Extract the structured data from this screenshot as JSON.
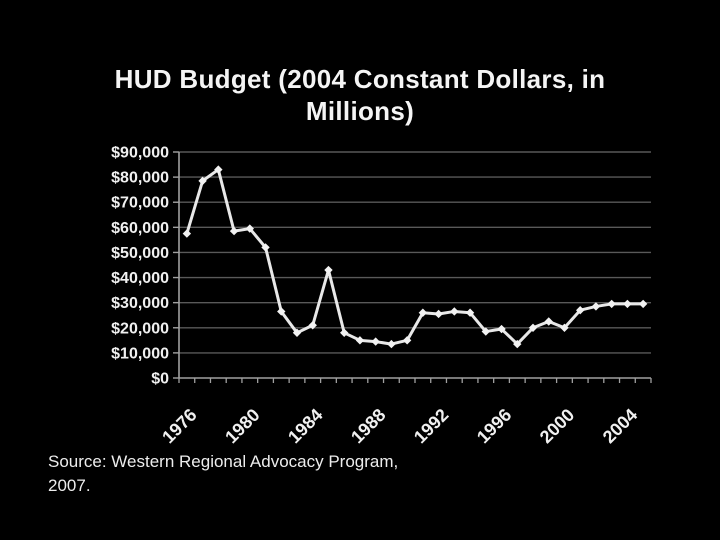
{
  "slide": {
    "title": {
      "line1": "HUD Budget (2004 Constant Dollars, in",
      "line2": "Millions)"
    },
    "source": {
      "line1": "Source: Western Regional Advocacy Program,",
      "line2": "2007."
    }
  },
  "colors": {
    "background": "#000000",
    "title_text": "#f5f5f5",
    "gridline": "#595959",
    "axis": "#a0a0a0",
    "line": "#e8e8e8",
    "marker": "#f2f2f2",
    "tick_label": "#f0f0f0"
  },
  "chart_data": {
    "type": "line",
    "title": "HUD Budget (2004 Constant Dollars, in Millions)",
    "xlabel": "",
    "ylabel": "",
    "grid": true,
    "legend": false,
    "ylim": [
      0,
      90000
    ],
    "y_tick_step": 10000,
    "y_tick_labels": [
      "$0",
      "$10,000",
      "$20,000",
      "$30,000",
      "$40,000",
      "$50,000",
      "$60,000",
      "$70,000",
      "$80,000",
      "$90,000"
    ],
    "x_tick_labels": [
      "1976",
      "1980",
      "1984",
      "1988",
      "1992",
      "1996",
      "2000",
      "2004"
    ],
    "x": [
      1976,
      1977,
      1978,
      1979,
      1980,
      1981,
      1982,
      1983,
      1984,
      1985,
      1986,
      1987,
      1988,
      1989,
      1990,
      1991,
      1992,
      1993,
      1994,
      1995,
      1996,
      1997,
      1998,
      1999,
      2000,
      2001,
      2002,
      2003,
      2004,
      2005
    ],
    "values": [
      57500,
      78500,
      83000,
      58500,
      59500,
      52000,
      26500,
      18000,
      21000,
      43000,
      18000,
      15000,
      14500,
      13500,
      15000,
      26000,
      25500,
      26500,
      26000,
      18500,
      19500,
      13500,
      20000,
      22500,
      20000,
      27000,
      28500,
      29500,
      29500,
      29500
    ]
  }
}
